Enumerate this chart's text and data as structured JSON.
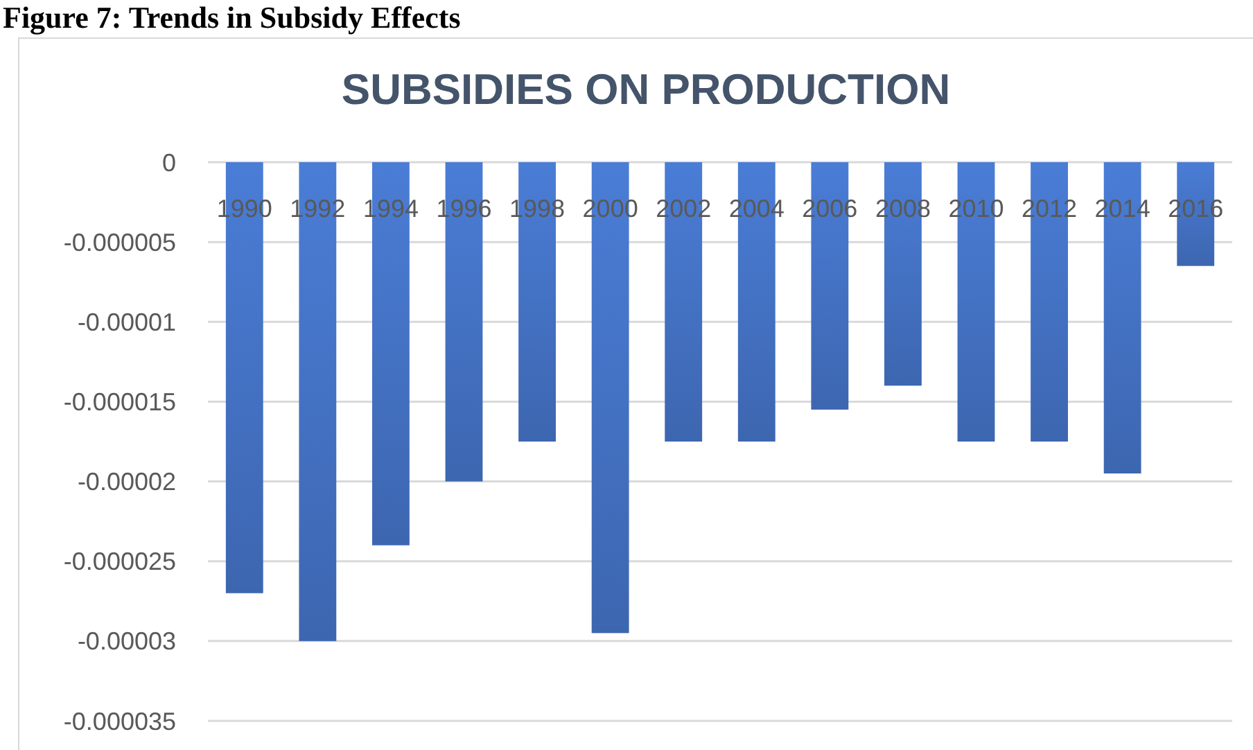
{
  "chart_data": {
    "type": "bar",
    "title": "SUBSIDIES ON PRODUCTION",
    "annotations": [
      "Figure 7: Trends in Subsidy Effects"
    ],
    "categories": [
      "1990",
      "1992",
      "1994",
      "1996",
      "1998",
      "2000",
      "2002",
      "2004",
      "2006",
      "2008",
      "2010",
      "2012",
      "2014",
      "2016"
    ],
    "values": [
      -2.7e-05,
      -3e-05,
      -2.4e-05,
      -2e-05,
      -1.75e-05,
      -2.95e-05,
      -1.75e-05,
      -1.75e-05,
      -1.55e-05,
      -1.4e-05,
      -1.75e-05,
      -1.75e-05,
      -1.95e-05,
      -6.5e-06
    ],
    "color": "#4472c4",
    "ylim": [
      -3.5e-05,
      0
    ],
    "yticks": [
      0,
      {
        "value": -5e-06,
        "label": "-0.000005"
      },
      {
        "value": -1e-05,
        "label": "-0.00001"
      },
      {
        "value": -1.5e-05,
        "label": "-0.000015"
      },
      {
        "value": -2e-05,
        "label": "-0.00002"
      },
      {
        "value": -2.5e-05,
        "label": "-0.000025"
      },
      {
        "value": -3e-05,
        "label": "-0.00003"
      },
      {
        "value": -3.5e-05,
        "label": "-0.000035"
      }
    ],
    "grid": "y"
  }
}
